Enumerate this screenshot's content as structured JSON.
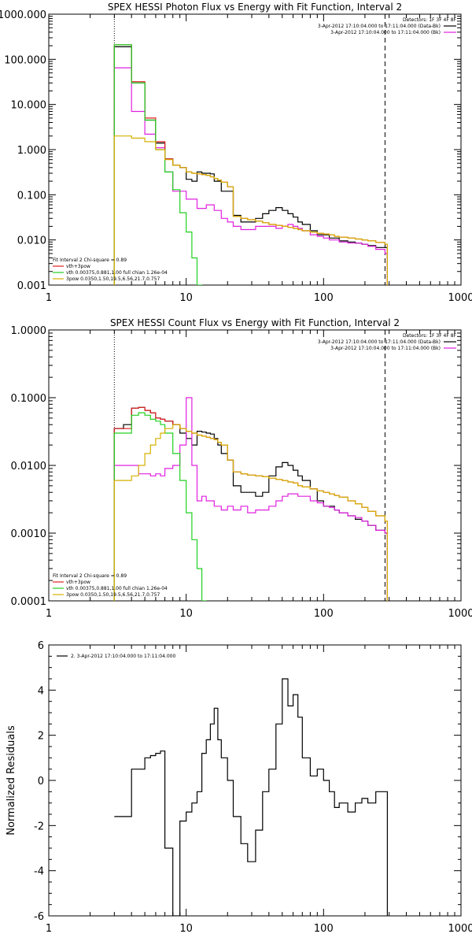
{
  "chart_data": [
    {
      "type": "line",
      "title": "SPEX HESSI Photon Flux vs Energy with Fit Function, Interval 2",
      "xscale": "log",
      "yscale": "log",
      "xlim": [
        1,
        1000
      ],
      "ylim": [
        0.001,
        1000
      ],
      "xticks": [
        "1",
        "10",
        "100",
        "1000"
      ],
      "yticks": [
        "0.001",
        "0.010",
        "0.100",
        "1.000",
        "10.000",
        "100.000",
        "1000.000"
      ],
      "vlines": [
        {
          "x": 3,
          "style": "dotted"
        },
        {
          "x": 280,
          "style": "dashed"
        }
      ],
      "legend_tr": [
        "Detectors: 1F 3F 4F 8F",
        "3-Apr-2012 17:10:04.000 to 17:11:04.000 (Data-Bk)",
        "3-Apr-2012 17:10:04.000 to 17:11:04.000 (Bk)"
      ],
      "legend_bl": [
        "Fit Interval 2   Chi-square = 0.89",
        "vth+3pow",
        "vth 0.00375,0.881,1.00  full chian 1.26e-04",
        "3pow 0.0350,1.50,19.5,6.56,21.7,0.757"
      ],
      "x": [
        3.0,
        3.5,
        4.0,
        4.5,
        5.0,
        5.5,
        6.0,
        6.5,
        7.0,
        8.0,
        9.0,
        10.0,
        11.0,
        12.0,
        13.0,
        14.0,
        15.0,
        16.0,
        17.0,
        18.0,
        20.0,
        22.0,
        25.0,
        28.0,
        32.0,
        36.0,
        40.0,
        45.0,
        50.0,
        55.0,
        60.0,
        65.0,
        70.0,
        80.0,
        90.0,
        100.0,
        110.0,
        120.0,
        130.0,
        150.0,
        170.0,
        190.0,
        210.0,
        240.0,
        280.0
      ],
      "series": [
        {
          "name": "Data-Bk",
          "color": "#000000",
          "values": [
            190,
            190,
            30,
            30,
            4.5,
            4.5,
            1.4,
            1.4,
            0.62,
            0.45,
            0.4,
            0.22,
            0.2,
            0.32,
            0.3,
            0.3,
            0.29,
            0.2,
            0.2,
            0.12,
            0.12,
            0.035,
            0.025,
            0.025,
            0.03,
            0.038,
            0.045,
            0.052,
            0.045,
            0.038,
            0.032,
            0.025,
            0.022,
            0.016,
            0.013,
            0.013,
            0.011,
            0.011,
            0.0095,
            0.009,
            0.0085,
            0.008,
            0.0075,
            0.0068,
            0.0068
          ]
        },
        {
          "name": "Bk",
          "color": "#e020e0",
          "values": [
            65,
            65,
            7,
            7,
            2.2,
            2.2,
            1.1,
            1.1,
            0.32,
            0.12,
            0.12,
            0.08,
            0.08,
            0.05,
            0.05,
            0.06,
            0.06,
            0.045,
            0.045,
            0.03,
            0.025,
            0.02,
            0.017,
            0.017,
            0.02,
            0.02,
            0.02,
            0.018,
            0.02,
            0.022,
            0.02,
            0.018,
            0.016,
            0.013,
            0.012,
            0.011,
            0.01,
            0.01,
            0.009,
            0.0085,
            0.0085,
            0.008,
            0.0072,
            0.0062,
            0.005
          ]
        },
        {
          "name": "vth+3pow",
          "color": "#e02020",
          "values": [
            210,
            210,
            32,
            32,
            5,
            5,
            1.5,
            1.5,
            0.62,
            0.45,
            0.4,
            0.32,
            0.3,
            0.29,
            0.28,
            0.27,
            0.25,
            0.23,
            0.21,
            0.19,
            0.15,
            0.033,
            0.03,
            0.028,
            0.026,
            0.024,
            0.022,
            0.021,
            0.02,
            0.019,
            0.018,
            0.017,
            0.016,
            0.015,
            0.014,
            0.0135,
            0.013,
            0.012,
            0.0115,
            0.011,
            0.0105,
            0.01,
            0.0095,
            0.0088,
            0.008
          ]
        },
        {
          "name": "vth",
          "color": "#20d020",
          "values": [
            210,
            210,
            30,
            30,
            4.5,
            4.5,
            1.0,
            1.0,
            0.32,
            0.13,
            0.04,
            0.015,
            0.004,
            0.001,
            0.0005,
            null,
            null,
            null,
            null,
            null,
            null,
            null,
            null,
            null,
            null,
            null,
            null,
            null,
            null,
            null,
            null,
            null,
            null,
            null,
            null,
            null,
            null,
            null,
            null,
            null,
            null,
            null,
            null,
            null,
            null
          ]
        },
        {
          "name": "3pow",
          "color": "#d4b000",
          "values": [
            2,
            2,
            1.8,
            1.8,
            1.5,
            1.5,
            1.0,
            1.0,
            0.6,
            0.45,
            0.4,
            0.32,
            0.3,
            0.29,
            0.28,
            0.27,
            0.25,
            0.23,
            0.21,
            0.19,
            0.15,
            0.033,
            0.03,
            0.028,
            0.026,
            0.024,
            0.022,
            0.021,
            0.02,
            0.019,
            0.018,
            0.017,
            0.016,
            0.015,
            0.014,
            0.0135,
            0.013,
            0.012,
            0.0115,
            0.011,
            0.0105,
            0.01,
            0.0095,
            0.0088,
            0.008
          ]
        }
      ]
    },
    {
      "type": "line",
      "title": "SPEX HESSI Count Flux vs Energy with Fit Function, Interval 2",
      "xscale": "log",
      "yscale": "log",
      "xlim": [
        1,
        1000
      ],
      "ylim": [
        0.0001,
        1
      ],
      "xticks": [
        "1",
        "10",
        "100",
        "1000"
      ],
      "yticks": [
        "0.0001",
        "0.0010",
        "0.0100",
        "0.1000",
        "1.0000"
      ],
      "vlines": [
        {
          "x": 3,
          "style": "dotted"
        },
        {
          "x": 280,
          "style": "dashed"
        }
      ],
      "legend_tr": [
        "Detectors: 1F 3F 4F 8F",
        "3-Apr-2012 17:10:04.000 to 17:11:04.000 (Data-Bk)",
        "3-Apr-2012 17:10:04.000 to 17:11:04.000 (Bk)"
      ],
      "legend_bl": [
        "Fit Interval 2   Chi-square = 0.89",
        "vth+3pow",
        "vth 0.00375,0.881,1.00  full chian 1.26e-04",
        "3pow 0.0350,1.50,19.5,6.56,21.7,0.757"
      ],
      "x": [
        3.0,
        3.5,
        4.0,
        4.5,
        5.0,
        5.5,
        6.0,
        6.5,
        7.0,
        8.0,
        9.0,
        10.0,
        11.0,
        12.0,
        13.0,
        14.0,
        15.0,
        16.0,
        17.0,
        18.0,
        20.0,
        22.0,
        25.0,
        28.0,
        32.0,
        36.0,
        40.0,
        45.0,
        50.0,
        55.0,
        60.0,
        65.0,
        70.0,
        80.0,
        90.0,
        100.0,
        110.0,
        120.0,
        130.0,
        150.0,
        170.0,
        190.0,
        210.0,
        240.0,
        280.0
      ],
      "series": [
        {
          "name": "Data-Bk",
          "color": "#000000",
          "values": [
            0.035,
            0.04,
            0.07,
            0.072,
            0.065,
            0.06,
            0.05,
            0.048,
            0.045,
            0.04,
            0.03,
            0.025,
            0.02,
            0.032,
            0.031,
            0.03,
            0.029,
            0.025,
            0.02,
            0.015,
            0.012,
            0.005,
            0.004,
            0.004,
            0.0035,
            0.004,
            0.007,
            0.0095,
            0.011,
            0.01,
            0.0085,
            0.007,
            0.006,
            0.0045,
            0.003,
            0.0025,
            0.0025,
            0.0022,
            0.002,
            0.0018,
            0.0016,
            0.0015,
            0.0013,
            0.0011,
            0.001
          ]
        },
        {
          "name": "Bk",
          "color": "#e020e0",
          "values": [
            0.01,
            0.01,
            0.01,
            0.0075,
            0.0075,
            0.007,
            0.0075,
            0.007,
            0.009,
            0.01,
            0.02,
            0.1,
            0.01,
            0.003,
            0.0035,
            0.003,
            0.003,
            0.0025,
            0.0025,
            0.0022,
            0.0025,
            0.0022,
            0.0025,
            0.002,
            0.0022,
            0.0022,
            0.0025,
            0.003,
            0.0035,
            0.0038,
            0.0038,
            0.0035,
            0.0035,
            0.003,
            0.0028,
            0.0025,
            0.0024,
            0.0022,
            0.002,
            0.0018,
            0.0017,
            0.0015,
            0.0013,
            0.0011,
            0.001
          ]
        },
        {
          "name": "vth+3pow",
          "color": "#e02020",
          "values": [
            0.035,
            0.035,
            0.07,
            0.072,
            0.065,
            0.06,
            0.05,
            0.048,
            0.045,
            0.04,
            0.035,
            0.032,
            0.03,
            0.028,
            0.027,
            0.026,
            0.025,
            0.024,
            0.022,
            0.02,
            0.012,
            0.008,
            0.0075,
            0.0072,
            0.007,
            0.0068,
            0.0065,
            0.0062,
            0.006,
            0.0057,
            0.0055,
            0.005,
            0.0048,
            0.0045,
            0.0042,
            0.004,
            0.0038,
            0.0036,
            0.0034,
            0.003,
            0.0027,
            0.0024,
            0.0021,
            0.0018,
            0.0015
          ]
        },
        {
          "name": "vth",
          "color": "#20d020",
          "values": [
            0.03,
            0.03,
            0.055,
            0.06,
            0.055,
            0.048,
            0.045,
            0.04,
            0.03,
            0.015,
            0.006,
            0.002,
            0.0008,
            0.0003,
            0.0001,
            null,
            null,
            null,
            null,
            null,
            null,
            null,
            null,
            null,
            null,
            null,
            null,
            null,
            null,
            null,
            null,
            null,
            null,
            null,
            null,
            null,
            null,
            null,
            null,
            null,
            null,
            null,
            null,
            null,
            null
          ]
        },
        {
          "name": "3pow",
          "color": "#d4b000",
          "values": [
            0.006,
            0.006,
            0.007,
            0.01,
            0.015,
            0.02,
            0.025,
            0.03,
            0.035,
            0.04,
            0.035,
            0.032,
            0.03,
            0.028,
            0.027,
            0.026,
            0.025,
            0.024,
            0.022,
            0.02,
            0.012,
            0.008,
            0.0075,
            0.0072,
            0.007,
            0.0068,
            0.0065,
            0.0062,
            0.006,
            0.0057,
            0.0055,
            0.005,
            0.0048,
            0.0045,
            0.0042,
            0.004,
            0.0038,
            0.0036,
            0.0034,
            0.003,
            0.0027,
            0.0024,
            0.0021,
            0.0018,
            0.0015
          ]
        }
      ]
    },
    {
      "type": "line",
      "title": "",
      "xscale": "log",
      "yscale": "linear",
      "xlim": [
        1,
        1000
      ],
      "ylim": [
        -6,
        6
      ],
      "ylabel": "Normalized Residuals",
      "xticks": [
        "1",
        "10",
        "100",
        "1000"
      ],
      "yticks": [
        "-6",
        "-4",
        "-2",
        "0",
        "2",
        "4",
        "6"
      ],
      "legend": [
        "2.  3-Apr-2012 17:10:04.000 to 17:11:04.000"
      ],
      "x": [
        3.0,
        3.5,
        4.0,
        4.5,
        5.0,
        5.5,
        6.0,
        6.5,
        7.0,
        8.0,
        9.0,
        10.0,
        11.0,
        12.0,
        13.0,
        14.0,
        15.0,
        16.0,
        17.0,
        18.0,
        20.0,
        22.0,
        25.0,
        28.0,
        32.0,
        36.0,
        40.0,
        45.0,
        50.0,
        55.0,
        60.0,
        65.0,
        70.0,
        80.0,
        90.0,
        100.0,
        110.0,
        120.0,
        130.0,
        150.0,
        170.0,
        190.0,
        210.0,
        240.0,
        280.0
      ],
      "series": [
        {
          "name": "",
          "color": "#000000",
          "values": [
            -1.6,
            -1.6,
            0.5,
            0.5,
            1.0,
            1.1,
            1.2,
            1.3,
            -3.0,
            -6.0,
            -1.8,
            -1.4,
            -1.0,
            -0.5,
            1.2,
            1.8,
            2.5,
            3.2,
            1.8,
            1.0,
            0.0,
            -1.6,
            -2.8,
            -3.6,
            -2.2,
            -0.5,
            0.5,
            2.5,
            4.5,
            3.3,
            3.8,
            2.8,
            1.0,
            0.2,
            0.5,
            0.0,
            -0.5,
            -1.2,
            -1.0,
            -1.4,
            -1.0,
            -0.8,
            -1.0,
            -0.5,
            -0.5
          ]
        }
      ]
    }
  ]
}
